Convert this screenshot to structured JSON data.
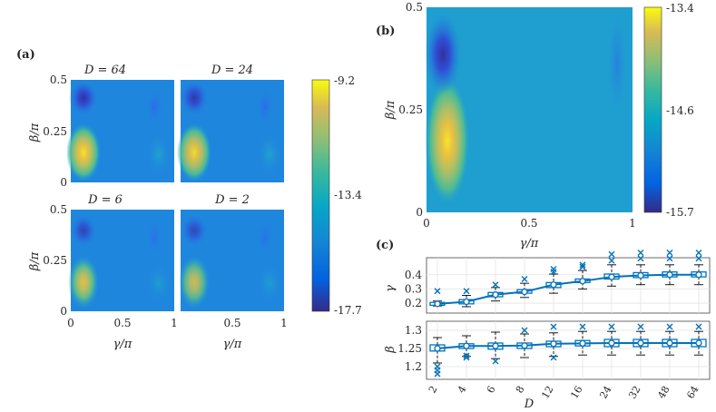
{
  "panel_labels": {
    "a": "(a)",
    "b": "(b)",
    "c": "(c)"
  },
  "chart_data": [
    {
      "id": "a",
      "type": "heatmap",
      "subplots": [
        {
          "title": "D = 64",
          "hot": {
            "x": 0.15,
            "y": 0.14,
            "strength": 1.0
          },
          "dark": {
            "x": 0.1,
            "y": 0.41,
            "strength": 1.0
          }
        },
        {
          "title": "D = 24",
          "hot": {
            "x": 0.15,
            "y": 0.14,
            "strength": 0.97
          },
          "dark": {
            "x": 0.1,
            "y": 0.41,
            "strength": 0.9
          }
        },
        {
          "title": "D = 6",
          "hot": {
            "x": 0.15,
            "y": 0.14,
            "strength": 0.78
          },
          "dark": {
            "x": 0.1,
            "y": 0.41,
            "strength": 0.7
          }
        },
        {
          "title": "D = 2",
          "hot": {
            "x": 0.15,
            "y": 0.14,
            "strength": 0.72
          },
          "dark": {
            "x": 0.1,
            "y": 0.41,
            "strength": 0.65
          }
        }
      ],
      "xlabel": "γ/π",
      "ylabel": "β/π",
      "xticks": [
        "0",
        "0.5",
        "1"
      ],
      "yticks": [
        "0",
        "0.25",
        "0.5"
      ],
      "xlim": [
        0,
        1
      ],
      "ylim": [
        0,
        0.5
      ],
      "colorbar": {
        "ticks": [
          "-9.2",
          "-13.4",
          "-17.7"
        ],
        "max": -9.2,
        "min": -17.7
      }
    },
    {
      "id": "b",
      "type": "heatmap",
      "hot": {
        "x": 0.11,
        "y": 0.15
      },
      "dark": {
        "x": 0.08,
        "y": 0.4
      },
      "xlabel": "γ/π",
      "ylabel": "β/π",
      "xticks": [
        "0",
        "0.5",
        "1"
      ],
      "yticks": [
        "0",
        "0.25",
        "0.5"
      ],
      "xlim": [
        0,
        1
      ],
      "ylim": [
        0,
        0.5
      ],
      "colorbar": {
        "ticks": [
          "-13.4",
          "-14.6",
          "-15.7"
        ],
        "max": -13.4,
        "min": -15.7
      }
    },
    {
      "id": "c",
      "type": "box",
      "categories": [
        "2",
        "4",
        "6",
        "8",
        "12",
        "16",
        "24",
        "32",
        "48",
        "64"
      ],
      "xlabel": "D",
      "series": [
        {
          "name": "γ",
          "ylabel": "γ",
          "ylim": [
            0.13,
            0.52
          ],
          "yticks": [
            "0.2",
            "0.3",
            "0.4"
          ],
          "ytick_values": [
            0.2,
            0.3,
            0.4
          ],
          "means": [
            0.195,
            0.21,
            0.26,
            0.28,
            0.33,
            0.355,
            0.385,
            0.395,
            0.4,
            0.4
          ],
          "q1": [
            0.185,
            0.195,
            0.245,
            0.27,
            0.31,
            0.345,
            0.37,
            0.38,
            0.385,
            0.385
          ],
          "q3": [
            0.205,
            0.225,
            0.275,
            0.295,
            0.345,
            0.37,
            0.405,
            0.415,
            0.42,
            0.42
          ],
          "whisker_low": [
            0.18,
            0.175,
            0.215,
            0.24,
            0.27,
            0.3,
            0.32,
            0.33,
            0.33,
            0.33
          ],
          "whisker_high": [
            0.215,
            0.255,
            0.31,
            0.34,
            0.405,
            0.43,
            0.47,
            0.47,
            0.47,
            0.47
          ],
          "outliers": [
            [
              0.285
            ],
            [
              0.285
            ],
            [
              0.33
            ],
            [
              0.37
            ],
            [
              0.42,
              0.44
            ],
            [
              0.455,
              0.47
            ],
            [
              0.5,
              0.545
            ],
            [
              0.515,
              0.555
            ],
            [
              0.515,
              0.555
            ],
            [
              0.515,
              0.555
            ]
          ]
        },
        {
          "name": "β",
          "ylabel": "β",
          "ylim": [
            1.165,
            1.325
          ],
          "yticks": [
            "1.2",
            "1.25",
            "1.3"
          ],
          "ytick_values": [
            1.2,
            1.25,
            1.3
          ],
          "means": [
            1.25,
            1.257,
            1.257,
            1.258,
            1.263,
            1.264,
            1.265,
            1.265,
            1.265,
            1.265
          ],
          "q1": [
            1.243,
            1.25,
            1.248,
            1.25,
            1.255,
            1.257,
            1.255,
            1.255,
            1.255,
            1.255
          ],
          "q3": [
            1.26,
            1.263,
            1.265,
            1.265,
            1.27,
            1.272,
            1.275,
            1.275,
            1.275,
            1.275
          ],
          "whisker_low": [
            1.21,
            1.228,
            1.222,
            1.225,
            1.228,
            1.232,
            1.232,
            1.232,
            1.232,
            1.232
          ],
          "whisker_high": [
            1.28,
            1.285,
            1.295,
            1.29,
            1.293,
            1.297,
            1.297,
            1.297,
            1.297,
            1.297
          ],
          "outliers": [
            [
              1.18,
              1.19,
              1.2
            ],
            [
              1.225,
              1.23
            ],
            [
              1.215
            ],
            [
              1.3
            ],
            [
              1.225,
              1.31
            ],
            [
              1.31
            ],
            [
              1.31
            ],
            [
              1.31
            ],
            [
              1.31
            ],
            [
              1.31
            ]
          ]
        }
      ]
    }
  ]
}
